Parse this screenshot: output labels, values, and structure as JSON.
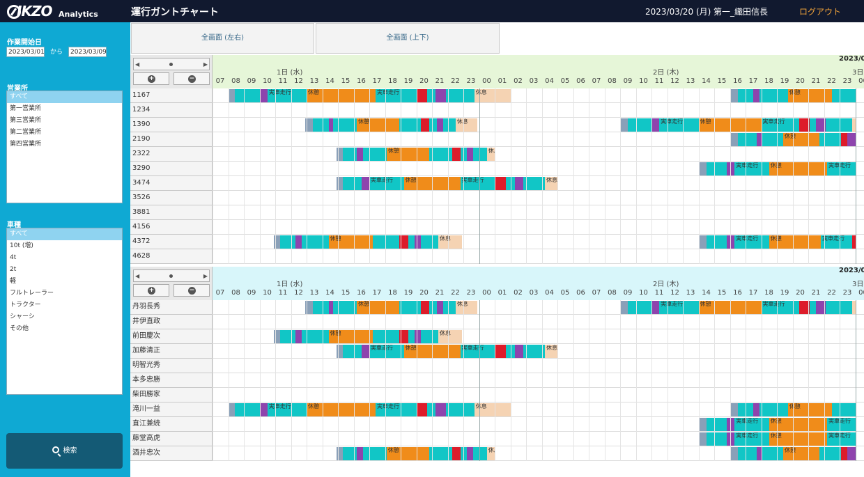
{
  "header": {
    "logo_text": "IKZO",
    "logo_sub": "Analytics",
    "title": "運行ガントチャート",
    "date": "2023/03/20 (月)",
    "user": "第一_織田信長",
    "logout_label": "ログアウト"
  },
  "sidebar": {
    "start_label": "作業開始日",
    "date_from": "2023/03/01",
    "kara": "から",
    "date_to": "2023/03/09",
    "office_label": "営業所",
    "offices": [
      "すべて",
      "第一営業所",
      "第三営業所",
      "第二営業所",
      "第四営業所"
    ],
    "vehicle_label": "車種",
    "vehicles": [
      "すべて",
      "10t (増)",
      "4t",
      "2t",
      "軽",
      "フルトレーラー",
      "トラクター",
      "シャーシ",
      "その他"
    ],
    "search_label": "検索"
  },
  "toolbar": {
    "full_lr": "全画面 (左右)",
    "full_ud": "全画面 (上下)"
  },
  "axis": {
    "year_month": "2023/0",
    "days": [
      "1日 (水)",
      "2日 (木)",
      "3日"
    ],
    "hours": [
      "07",
      "08",
      "09",
      "10",
      "11",
      "12",
      "13",
      "14",
      "15",
      "16",
      "17",
      "18",
      "19",
      "20",
      "21",
      "22",
      "23",
      "00",
      "01",
      "02",
      "03",
      "04",
      "05",
      "06",
      "07",
      "08",
      "09",
      "10",
      "11",
      "12",
      "13",
      "14",
      "15",
      "16",
      "17",
      "18",
      "19",
      "20",
      "21",
      "22",
      "23",
      "00"
    ]
  },
  "legend": {
    "colors": {
      "drive": "#11c6c6",
      "rest": "#f08c1a",
      "load": "#8e44ad",
      "unload": "#dd1c2a",
      "idle": "#f5d3b3",
      "start": "#8aa0b8"
    },
    "labels": {
      "empty_drive": "実車走行",
      "rest": "休憩",
      "break": "休息"
    }
  },
  "panel1": {
    "rows": [
      {
        "label": "1167",
        "segs": [
          [
            1.0,
            1.4,
            "start"
          ],
          [
            1.4,
            3.0,
            "drive"
          ],
          [
            3.0,
            3.5,
            "load"
          ],
          [
            3.5,
            6.0,
            "drive",
            "empty_drive"
          ],
          [
            6.0,
            10.4,
            "rest",
            "rest"
          ],
          [
            10.4,
            13.0,
            "drive",
            "empty_drive"
          ],
          [
            13.0,
            13.7,
            "unload"
          ],
          [
            13.7,
            14.2,
            "drive"
          ],
          [
            14.2,
            14.9,
            "load"
          ],
          [
            14.9,
            16.7,
            "drive"
          ],
          [
            16.7,
            19.0,
            "idle",
            "break"
          ],
          [
            33.0,
            33.5,
            "start"
          ],
          [
            33.5,
            34.5,
            "drive"
          ],
          [
            34.5,
            34.9,
            "load"
          ],
          [
            34.9,
            36.7,
            "drive"
          ],
          [
            36.7,
            39.5,
            "rest",
            "rest"
          ],
          [
            39.5,
            41.0,
            "drive"
          ]
        ]
      },
      {
        "label": "1234",
        "segs": []
      },
      {
        "label": "1390",
        "segs": [
          [
            5.9,
            6.4,
            "start"
          ],
          [
            6.4,
            7.4,
            "drive"
          ],
          [
            7.4,
            7.7,
            "load"
          ],
          [
            7.7,
            9.2,
            "drive"
          ],
          [
            9.2,
            11.9,
            "rest",
            "rest"
          ],
          [
            11.9,
            13.3,
            "drive"
          ],
          [
            13.3,
            13.8,
            "unload"
          ],
          [
            13.8,
            14.3,
            "drive"
          ],
          [
            14.3,
            14.7,
            "load"
          ],
          [
            14.7,
            15.5,
            "drive"
          ],
          [
            15.5,
            16.9,
            "idle",
            "break"
          ],
          [
            26.0,
            26.5,
            "start"
          ],
          [
            26.5,
            28.0,
            "drive"
          ],
          [
            28.0,
            28.5,
            "load"
          ],
          [
            28.5,
            31.0,
            "drive",
            "empty_drive"
          ],
          [
            31.0,
            35.0,
            "rest",
            "rest"
          ],
          [
            35.0,
            37.4,
            "drive",
            "empty_drive"
          ],
          [
            37.4,
            38.1,
            "unload"
          ],
          [
            38.1,
            38.5,
            "drive"
          ],
          [
            38.5,
            39.1,
            "load"
          ],
          [
            39.1,
            40.8,
            "drive"
          ],
          [
            40.8,
            41.0,
            "idle"
          ]
        ]
      },
      {
        "label": "2190",
        "segs": [
          [
            33.0,
            33.5,
            "start"
          ],
          [
            33.5,
            34.7,
            "drive"
          ],
          [
            34.7,
            35.0,
            "load"
          ],
          [
            35.0,
            36.4,
            "drive"
          ],
          [
            36.4,
            38.7,
            "rest",
            "rest"
          ],
          [
            38.7,
            40.1,
            "drive"
          ],
          [
            40.1,
            40.5,
            "unload"
          ],
          [
            40.5,
            41.0,
            "load"
          ]
        ]
      },
      {
        "label": "2322",
        "segs": [
          [
            7.9,
            8.3,
            "start"
          ],
          [
            8.3,
            9.2,
            "drive"
          ],
          [
            9.2,
            9.6,
            "load"
          ],
          [
            9.6,
            11.1,
            "drive"
          ],
          [
            11.1,
            13.8,
            "rest",
            "rest"
          ],
          [
            13.8,
            15.3,
            "drive"
          ],
          [
            15.3,
            15.8,
            "unload"
          ],
          [
            15.8,
            16.2,
            "drive"
          ],
          [
            16.2,
            16.6,
            "load"
          ],
          [
            16.6,
            17.5,
            "drive"
          ],
          [
            17.5,
            18.0,
            "idle",
            "break"
          ]
        ]
      },
      {
        "label": "3290",
        "segs": [
          [
            31.0,
            31.5,
            "start"
          ],
          [
            31.5,
            32.8,
            "drive"
          ],
          [
            32.8,
            33.3,
            "load"
          ],
          [
            33.3,
            35.5,
            "drive",
            "empty_drive"
          ],
          [
            35.5,
            39.2,
            "rest",
            "rest"
          ],
          [
            39.2,
            41.0,
            "drive",
            "empty_drive"
          ]
        ]
      },
      {
        "label": "3474",
        "segs": [
          [
            7.9,
            8.3,
            "start"
          ],
          [
            8.3,
            9.5,
            "drive"
          ],
          [
            9.5,
            10.0,
            "load"
          ],
          [
            10.0,
            12.2,
            "drive",
            "empty_drive"
          ],
          [
            12.2,
            15.8,
            "rest",
            "rest"
          ],
          [
            15.8,
            18.0,
            "drive",
            "empty_drive"
          ],
          [
            18.0,
            18.7,
            "unload"
          ],
          [
            18.7,
            19.3,
            "drive"
          ],
          [
            19.3,
            19.8,
            "load"
          ],
          [
            19.8,
            21.2,
            "drive"
          ],
          [
            21.2,
            22.0,
            "idle",
            "break"
          ]
        ]
      },
      {
        "label": "3526",
        "segs": []
      },
      {
        "label": "3881",
        "segs": []
      },
      {
        "label": "4156",
        "segs": []
      },
      {
        "label": "4372",
        "segs": [
          [
            3.9,
            4.3,
            "start"
          ],
          [
            4.3,
            5.3,
            "drive"
          ],
          [
            5.3,
            5.7,
            "load"
          ],
          [
            5.7,
            7.4,
            "drive"
          ],
          [
            7.4,
            10.2,
            "rest",
            "rest"
          ],
          [
            10.2,
            11.9,
            "drive"
          ],
          [
            11.9,
            12.5,
            "unload"
          ],
          [
            12.5,
            12.9,
            "drive"
          ],
          [
            12.9,
            13.3,
            "load"
          ],
          [
            13.3,
            14.4,
            "drive"
          ],
          [
            14.4,
            15.9,
            "idle",
            "break"
          ],
          [
            31.0,
            31.5,
            "start"
          ],
          [
            31.5,
            32.8,
            "drive"
          ],
          [
            32.8,
            33.3,
            "load"
          ],
          [
            33.3,
            35.5,
            "drive",
            "empty_drive"
          ],
          [
            35.5,
            38.8,
            "rest",
            "rest"
          ],
          [
            38.8,
            40.8,
            "drive",
            "empty_drive"
          ],
          [
            40.8,
            41.0,
            "unload"
          ]
        ]
      },
      {
        "label": "4628",
        "segs": []
      }
    ]
  },
  "panel2": {
    "rows": [
      {
        "label": "丹羽長秀",
        "segs": [
          [
            5.9,
            6.4,
            "start"
          ],
          [
            6.4,
            7.4,
            "drive"
          ],
          [
            7.4,
            7.7,
            "load"
          ],
          [
            7.7,
            9.2,
            "drive"
          ],
          [
            9.2,
            11.9,
            "rest",
            "rest"
          ],
          [
            11.9,
            13.3,
            "drive"
          ],
          [
            13.3,
            13.8,
            "unload"
          ],
          [
            13.8,
            14.3,
            "drive"
          ],
          [
            14.3,
            14.7,
            "load"
          ],
          [
            14.7,
            15.5,
            "drive"
          ],
          [
            15.5,
            16.9,
            "idle",
            "break"
          ],
          [
            26.0,
            26.5,
            "start"
          ],
          [
            26.5,
            28.0,
            "drive"
          ],
          [
            28.0,
            28.5,
            "load"
          ],
          [
            28.5,
            31.0,
            "drive",
            "empty_drive"
          ],
          [
            31.0,
            35.0,
            "rest",
            "rest"
          ],
          [
            35.0,
            37.4,
            "drive",
            "empty_drive"
          ],
          [
            37.4,
            38.1,
            "unload"
          ],
          [
            38.1,
            38.5,
            "drive"
          ],
          [
            38.5,
            39.1,
            "load"
          ],
          [
            39.1,
            40.8,
            "drive"
          ],
          [
            40.8,
            41.0,
            "idle"
          ]
        ]
      },
      {
        "label": "井伊直政",
        "segs": []
      },
      {
        "label": "前田慶次",
        "segs": [
          [
            3.9,
            4.3,
            "start"
          ],
          [
            4.3,
            5.3,
            "drive"
          ],
          [
            5.3,
            5.7,
            "load"
          ],
          [
            5.7,
            7.4,
            "drive"
          ],
          [
            7.4,
            10.2,
            "rest",
            "rest"
          ],
          [
            10.2,
            11.9,
            "drive"
          ],
          [
            11.9,
            12.5,
            "unload"
          ],
          [
            12.5,
            12.9,
            "drive"
          ],
          [
            12.9,
            13.3,
            "load"
          ],
          [
            13.3,
            14.4,
            "drive"
          ],
          [
            14.4,
            15.9,
            "idle",
            "break"
          ]
        ]
      },
      {
        "label": "加藤清正",
        "segs": [
          [
            7.9,
            8.3,
            "start"
          ],
          [
            8.3,
            9.5,
            "drive"
          ],
          [
            9.5,
            10.0,
            "load"
          ],
          [
            10.0,
            12.2,
            "drive",
            "empty_drive"
          ],
          [
            12.2,
            15.8,
            "rest",
            "rest"
          ],
          [
            15.8,
            18.0,
            "drive",
            "empty_drive"
          ],
          [
            18.0,
            18.7,
            "unload"
          ],
          [
            18.7,
            19.3,
            "drive"
          ],
          [
            19.3,
            19.8,
            "load"
          ],
          [
            19.8,
            21.2,
            "drive"
          ],
          [
            21.2,
            22.0,
            "idle",
            "break"
          ]
        ]
      },
      {
        "label": "明智光秀",
        "segs": []
      },
      {
        "label": "本多忠勝",
        "segs": []
      },
      {
        "label": "柴田勝家",
        "segs": []
      },
      {
        "label": "滝川一益",
        "segs": [
          [
            1.0,
            1.4,
            "start"
          ],
          [
            1.4,
            3.0,
            "drive"
          ],
          [
            3.0,
            3.5,
            "load"
          ],
          [
            3.5,
            6.0,
            "drive",
            "empty_drive"
          ],
          [
            6.0,
            10.4,
            "rest",
            "rest"
          ],
          [
            10.4,
            13.0,
            "drive",
            "empty_drive"
          ],
          [
            13.0,
            13.7,
            "unload"
          ],
          [
            13.7,
            14.2,
            "drive"
          ],
          [
            14.2,
            14.9,
            "load"
          ],
          [
            14.9,
            16.7,
            "drive"
          ],
          [
            16.7,
            19.0,
            "idle",
            "break"
          ],
          [
            33.0,
            33.5,
            "start"
          ],
          [
            33.5,
            34.5,
            "drive"
          ],
          [
            34.5,
            34.9,
            "load"
          ],
          [
            34.9,
            36.7,
            "drive"
          ],
          [
            36.7,
            39.5,
            "rest",
            "rest"
          ],
          [
            39.5,
            41.0,
            "drive"
          ]
        ]
      },
      {
        "label": "直江兼続",
        "segs": [
          [
            31.0,
            31.5,
            "start"
          ],
          [
            31.5,
            32.8,
            "drive"
          ],
          [
            32.8,
            33.3,
            "load"
          ],
          [
            33.3,
            35.5,
            "drive",
            "empty_drive"
          ],
          [
            35.5,
            39.2,
            "rest",
            "rest"
          ],
          [
            39.2,
            41.0,
            "drive",
            "empty_drive"
          ]
        ]
      },
      {
        "label": "藤堂高虎",
        "segs": [
          [
            31.0,
            31.5,
            "start"
          ],
          [
            31.5,
            32.8,
            "drive"
          ],
          [
            32.8,
            33.3,
            "load"
          ],
          [
            33.3,
            35.5,
            "drive",
            "empty_drive"
          ],
          [
            35.5,
            39.2,
            "rest",
            "rest"
          ],
          [
            39.2,
            41.0,
            "drive",
            "empty_drive"
          ]
        ]
      },
      {
        "label": "酒井忠次",
        "segs": [
          [
            7.9,
            8.3,
            "start"
          ],
          [
            8.3,
            9.2,
            "drive"
          ],
          [
            9.2,
            9.6,
            "load"
          ],
          [
            9.6,
            11.1,
            "drive"
          ],
          [
            11.1,
            13.8,
            "rest",
            "rest"
          ],
          [
            13.8,
            15.3,
            "drive"
          ],
          [
            15.3,
            15.8,
            "unload"
          ],
          [
            15.8,
            16.2,
            "drive"
          ],
          [
            16.2,
            16.6,
            "load"
          ],
          [
            16.6,
            17.5,
            "drive"
          ],
          [
            17.5,
            18.0,
            "idle",
            "break"
          ],
          [
            33.0,
            33.5,
            "start"
          ],
          [
            33.5,
            34.7,
            "drive"
          ],
          [
            34.7,
            35.0,
            "load"
          ],
          [
            35.0,
            36.4,
            "drive"
          ],
          [
            36.4,
            38.7,
            "rest",
            "rest"
          ],
          [
            38.7,
            40.1,
            "drive"
          ],
          [
            40.1,
            40.5,
            "unload"
          ],
          [
            40.5,
            41.0,
            "load"
          ]
        ]
      }
    ]
  }
}
